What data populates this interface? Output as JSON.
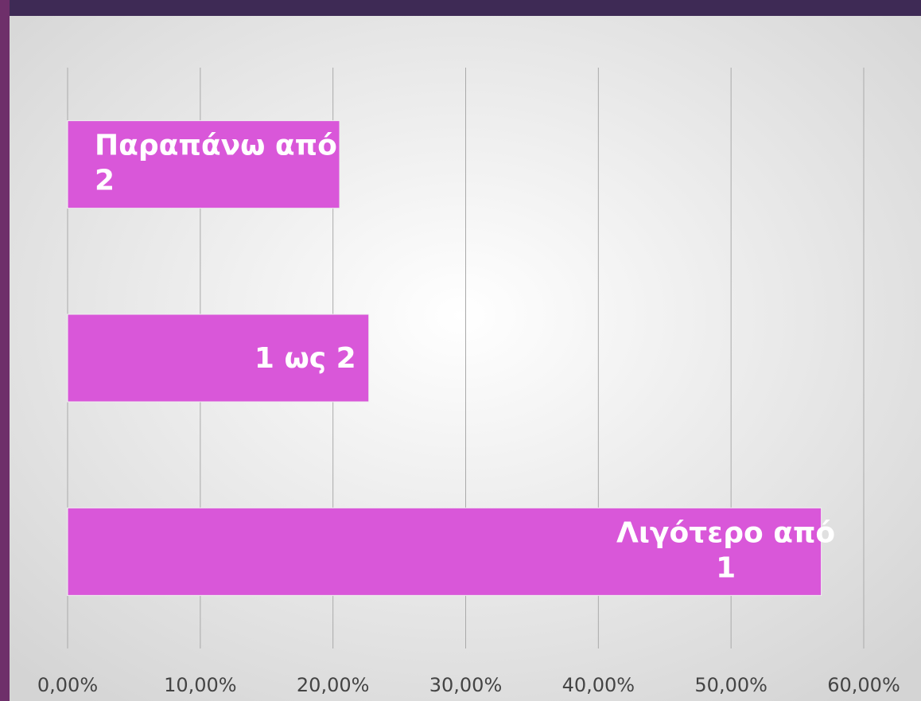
{
  "chart_data": {
    "type": "bar",
    "orientation": "horizontal",
    "categories": [
      "Παραπάνω από 2",
      "1 ως 2",
      "Λιγότερο από 1"
    ],
    "values": [
      20.5,
      22.7,
      56.8
    ],
    "color": "#d957d9",
    "xlim": [
      0,
      60
    ],
    "xticks": [
      {
        "value": 0,
        "label": "0,00%"
      },
      {
        "value": 10,
        "label": "10,00%"
      },
      {
        "value": 20,
        "label": "20,00%"
      },
      {
        "value": 30,
        "label": "30,00%"
      },
      {
        "value": 40,
        "label": "40,00%"
      },
      {
        "value": 50,
        "label": "50,00%"
      },
      {
        "value": 60,
        "label": "60,00%"
      }
    ],
    "grid": true
  }
}
